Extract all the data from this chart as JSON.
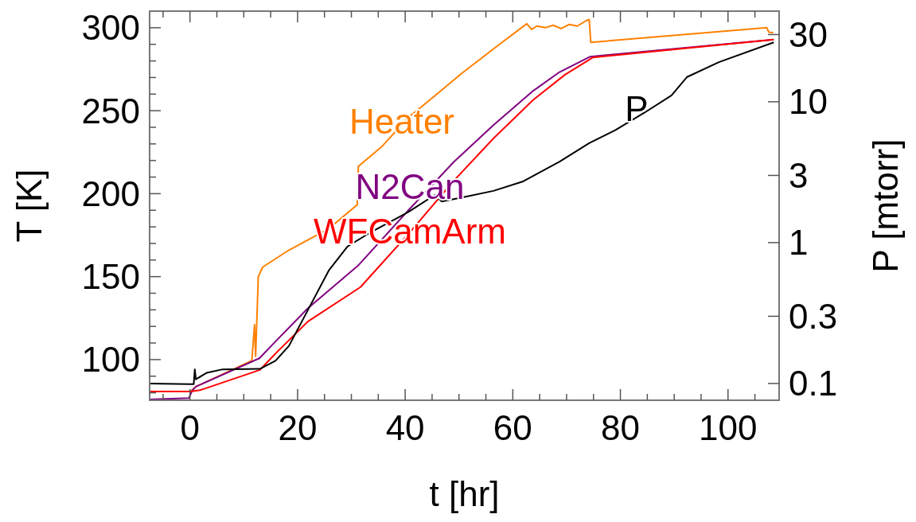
{
  "chart_data": {
    "type": "line",
    "xlabel": "t [hr]",
    "ylabel": "T [K]",
    "y2label": "P [mtorr]",
    "log": "y2",
    "xlim": [
      -7.5,
      109.5
    ],
    "ylim": [
      75.5,
      310
    ],
    "y2lim": [
      0.076,
      44
    ],
    "xticks": [
      {
        "value": -5,
        "label": null
      },
      0,
      {
        "value": 5,
        "label": null
      },
      {
        "value": 10,
        "label": null
      },
      {
        "value": 15,
        "label": null
      },
      20,
      {
        "value": 25,
        "label": null
      },
      {
        "value": 30,
        "label": null
      },
      {
        "value": 35,
        "label": null
      },
      40,
      {
        "value": 45,
        "label": null
      },
      {
        "value": 50,
        "label": null
      },
      {
        "value": 55,
        "label": null
      },
      60,
      {
        "value": 65,
        "label": null
      },
      {
        "value": 70,
        "label": null
      },
      {
        "value": 75,
        "label": null
      },
      80,
      {
        "value": 85,
        "label": null
      },
      {
        "value": 90,
        "label": null
      },
      {
        "value": 95,
        "label": null
      },
      100,
      {
        "value": 105,
        "label": null
      }
    ],
    "yticks": [
      {
        "value": 80,
        "label": null
      },
      {
        "value": 90,
        "label": null
      },
      100,
      {
        "value": 110,
        "label": null
      },
      {
        "value": 120,
        "label": null
      },
      {
        "value": 130,
        "label": null
      },
      {
        "value": 140,
        "label": null
      },
      150,
      {
        "value": 160,
        "label": null
      },
      {
        "value": 170,
        "label": null
      },
      {
        "value": 180,
        "label": null
      },
      {
        "value": 190,
        "label": null
      },
      200,
      {
        "value": 210,
        "label": null
      },
      {
        "value": 220,
        "label": null
      },
      {
        "value": 230,
        "label": null
      },
      {
        "value": 240,
        "label": null
      },
      250,
      {
        "value": 260,
        "label": null
      },
      {
        "value": 270,
        "label": null
      },
      {
        "value": 280,
        "label": null
      },
      {
        "value": 290,
        "label": null
      },
      300
    ],
    "y2ticks": [
      0.1,
      0.3,
      1,
      3,
      10,
      30
    ],
    "series": [
      {
        "name": "Heater",
        "color": "#ff8000",
        "x": [
          -7.5,
          0.1,
          1.1,
          11.5,
          12.0,
          12.2,
          12.4,
          12.7,
          13.5,
          18.4,
          25.8,
          31.1,
          31.3,
          35.7,
          40.6,
          45.5,
          50.5,
          57.9,
          62.6,
          63.5,
          64.5,
          66,
          67.5,
          69,
          70.5,
          72,
          73.5,
          74.2,
          74.5,
          107.2,
          107.6,
          108.4
        ],
        "values": [
          80.8,
          80.8,
          83.7,
          99.4,
          121,
          102,
          121,
          150,
          155.7,
          166,
          178.9,
          193.3,
          216.5,
          228.5,
          246,
          258.9,
          272.5,
          290.9,
          302.4,
          299,
          301,
          300,
          301.5,
          299.5,
          302,
          301,
          304,
          305,
          291.2,
          300,
          297.3,
          297
        ]
      },
      {
        "name": "N2Can",
        "color": "#800080",
        "x": [
          -7.5,
          -0.2,
          0.4,
          1.1,
          12.9,
          15.9,
          21.9,
          31.2,
          40.6,
          49,
          56.4,
          63.8,
          68.7,
          74.4,
          108.5
        ],
        "values": [
          76,
          76.8,
          81.3,
          83.7,
          100.8,
          110.9,
          130.9,
          156.5,
          190,
          219,
          241.3,
          262,
          273.3,
          282.6,
          292.8
        ]
      },
      {
        "name": "WFCamArm",
        "color": "#ff0000",
        "x": [
          -7.5,
          0.1,
          1.9,
          13,
          15.9,
          21.9,
          31.7,
          40.6,
          49,
          56.4,
          63.8,
          69.7,
          74.9,
          108.5
        ],
        "values": [
          80.8,
          80.8,
          81.6,
          93.8,
          103.7,
          122.9,
          143.7,
          175.7,
          207.7,
          233.3,
          256.5,
          271.7,
          282.1,
          292.8
        ]
      },
      {
        "name": "P",
        "color": "#000000",
        "axis": "y2",
        "x": [
          -7.5,
          0,
          0.7,
          0.9,
          1.1,
          3.1,
          6.1,
          13,
          15.9,
          18.4,
          21.9,
          25.8,
          29.3,
          33.2,
          40.6,
          45.5,
          46.8,
          50.5,
          56.4,
          61.8,
          68.7,
          74.2,
          79.1,
          84.5,
          89.5,
          92.4,
          98.3,
          108.5
        ],
        "values": [
          0.1,
          0.099,
          0.099,
          0.126,
          0.107,
          0.119,
          0.126,
          0.127,
          0.145,
          0.185,
          0.331,
          0.634,
          0.94,
          1.16,
          1.65,
          2.18,
          1.96,
          2.09,
          2.33,
          2.71,
          3.76,
          5.08,
          6.3,
          8.38,
          11.1,
          15,
          19.1,
          26.4
        ]
      }
    ]
  }
}
